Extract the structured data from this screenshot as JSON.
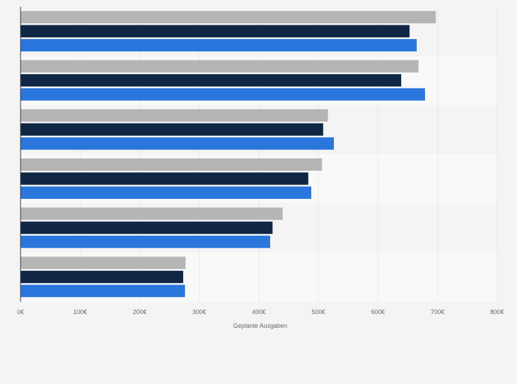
{
  "chart_data": {
    "type": "bar",
    "orientation": "horizontal",
    "categories": [
      "",
      "",
      "",
      "",
      "",
      ""
    ],
    "series": [
      {
        "values": [
          697,
          668,
          516,
          506,
          440,
          277
        ],
        "color": "#b5b5b5"
      },
      {
        "values": [
          653,
          639,
          508,
          483,
          423,
          273
        ],
        "color": "#0f2744"
      },
      {
        "values": [
          665,
          679,
          526,
          488,
          419,
          276
        ],
        "color": "#2a76dd"
      }
    ],
    "title": "",
    "xlabel": "Geplante Ausgaben",
    "ylabel": "",
    "xlim": [
      0,
      800
    ],
    "ticks": [
      {
        "value": 0,
        "label": "0€"
      },
      {
        "value": 100,
        "label": "100€"
      },
      {
        "value": 200,
        "label": "200€"
      },
      {
        "value": 300,
        "label": "300€"
      },
      {
        "value": 400,
        "label": "400€"
      },
      {
        "value": 500,
        "label": "500€"
      },
      {
        "value": 600,
        "label": "600€"
      },
      {
        "value": 700,
        "label": "700€"
      },
      {
        "value": 800,
        "label": "800€"
      }
    ],
    "grid": true,
    "legend": "none"
  }
}
